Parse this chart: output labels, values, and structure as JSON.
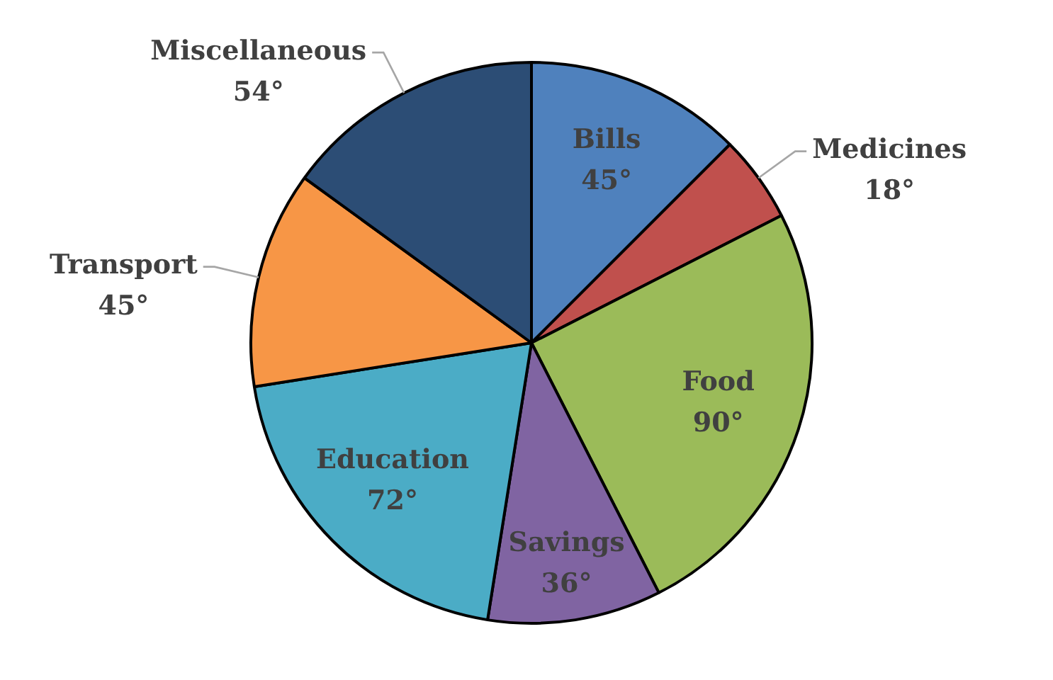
{
  "chart_data": {
    "type": "pie",
    "categories": [
      "Bills",
      "Medicines",
      "Food",
      "Savings",
      "Education",
      "Transport",
      "Miscellaneous"
    ],
    "values": [
      45,
      18,
      90,
      36,
      72,
      45,
      54
    ],
    "value_labels": [
      "45°",
      "18°",
      "90°",
      "36°",
      "72°",
      "45°",
      "54°"
    ],
    "colors": [
      "#4f81bd",
      "#c0504d",
      "#9bbb59",
      "#8064a2",
      "#4bacc6",
      "#f79646",
      "#2c4d75"
    ],
    "legend": false
  }
}
